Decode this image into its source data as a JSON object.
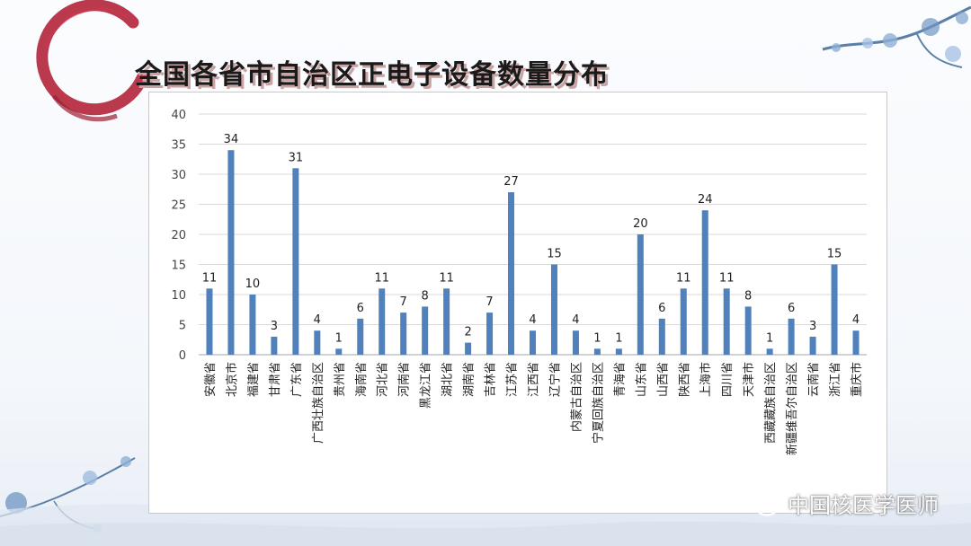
{
  "title": "全国各省市自治区正电子设备数量分布",
  "watermark": "中国核医学医师",
  "icons": {
    "watermark": "wechat-icon"
  },
  "colors": {
    "bar": "#4f81bd",
    "ring": "#b2243a",
    "title_shadow": "#c9a2a2",
    "grid": "#d9d9d9"
  },
  "chart_data": {
    "type": "bar",
    "title": "",
    "xlabel": "",
    "ylabel": "",
    "ylim": [
      0,
      40
    ],
    "yticks": [
      0,
      5,
      10,
      15,
      20,
      25,
      30,
      35,
      40
    ],
    "grid": true,
    "legend": "none",
    "categories": [
      "安徽省",
      "北京市",
      "福建省",
      "甘肃省",
      "广东省",
      "广西壮族自治区",
      "贵州省",
      "海南省",
      "河北省",
      "河南省",
      "黑龙江省",
      "湖北省",
      "湖南省",
      "吉林省",
      "江苏省",
      "江西省",
      "辽宁省",
      "内蒙古自治区",
      "宁夏回族自治区",
      "青海省",
      "山东省",
      "山西省",
      "陕西省",
      "上海市",
      "四川省",
      "天津市",
      "西藏藏族自治区",
      "新疆维吾尔自治区",
      "云南省",
      "浙江省",
      "重庆市"
    ],
    "values": [
      11,
      34,
      10,
      3,
      31,
      4,
      1,
      6,
      11,
      7,
      8,
      11,
      2,
      7,
      27,
      4,
      15,
      4,
      1,
      1,
      20,
      6,
      11,
      24,
      11,
      8,
      1,
      6,
      3,
      15,
      4
    ]
  }
}
